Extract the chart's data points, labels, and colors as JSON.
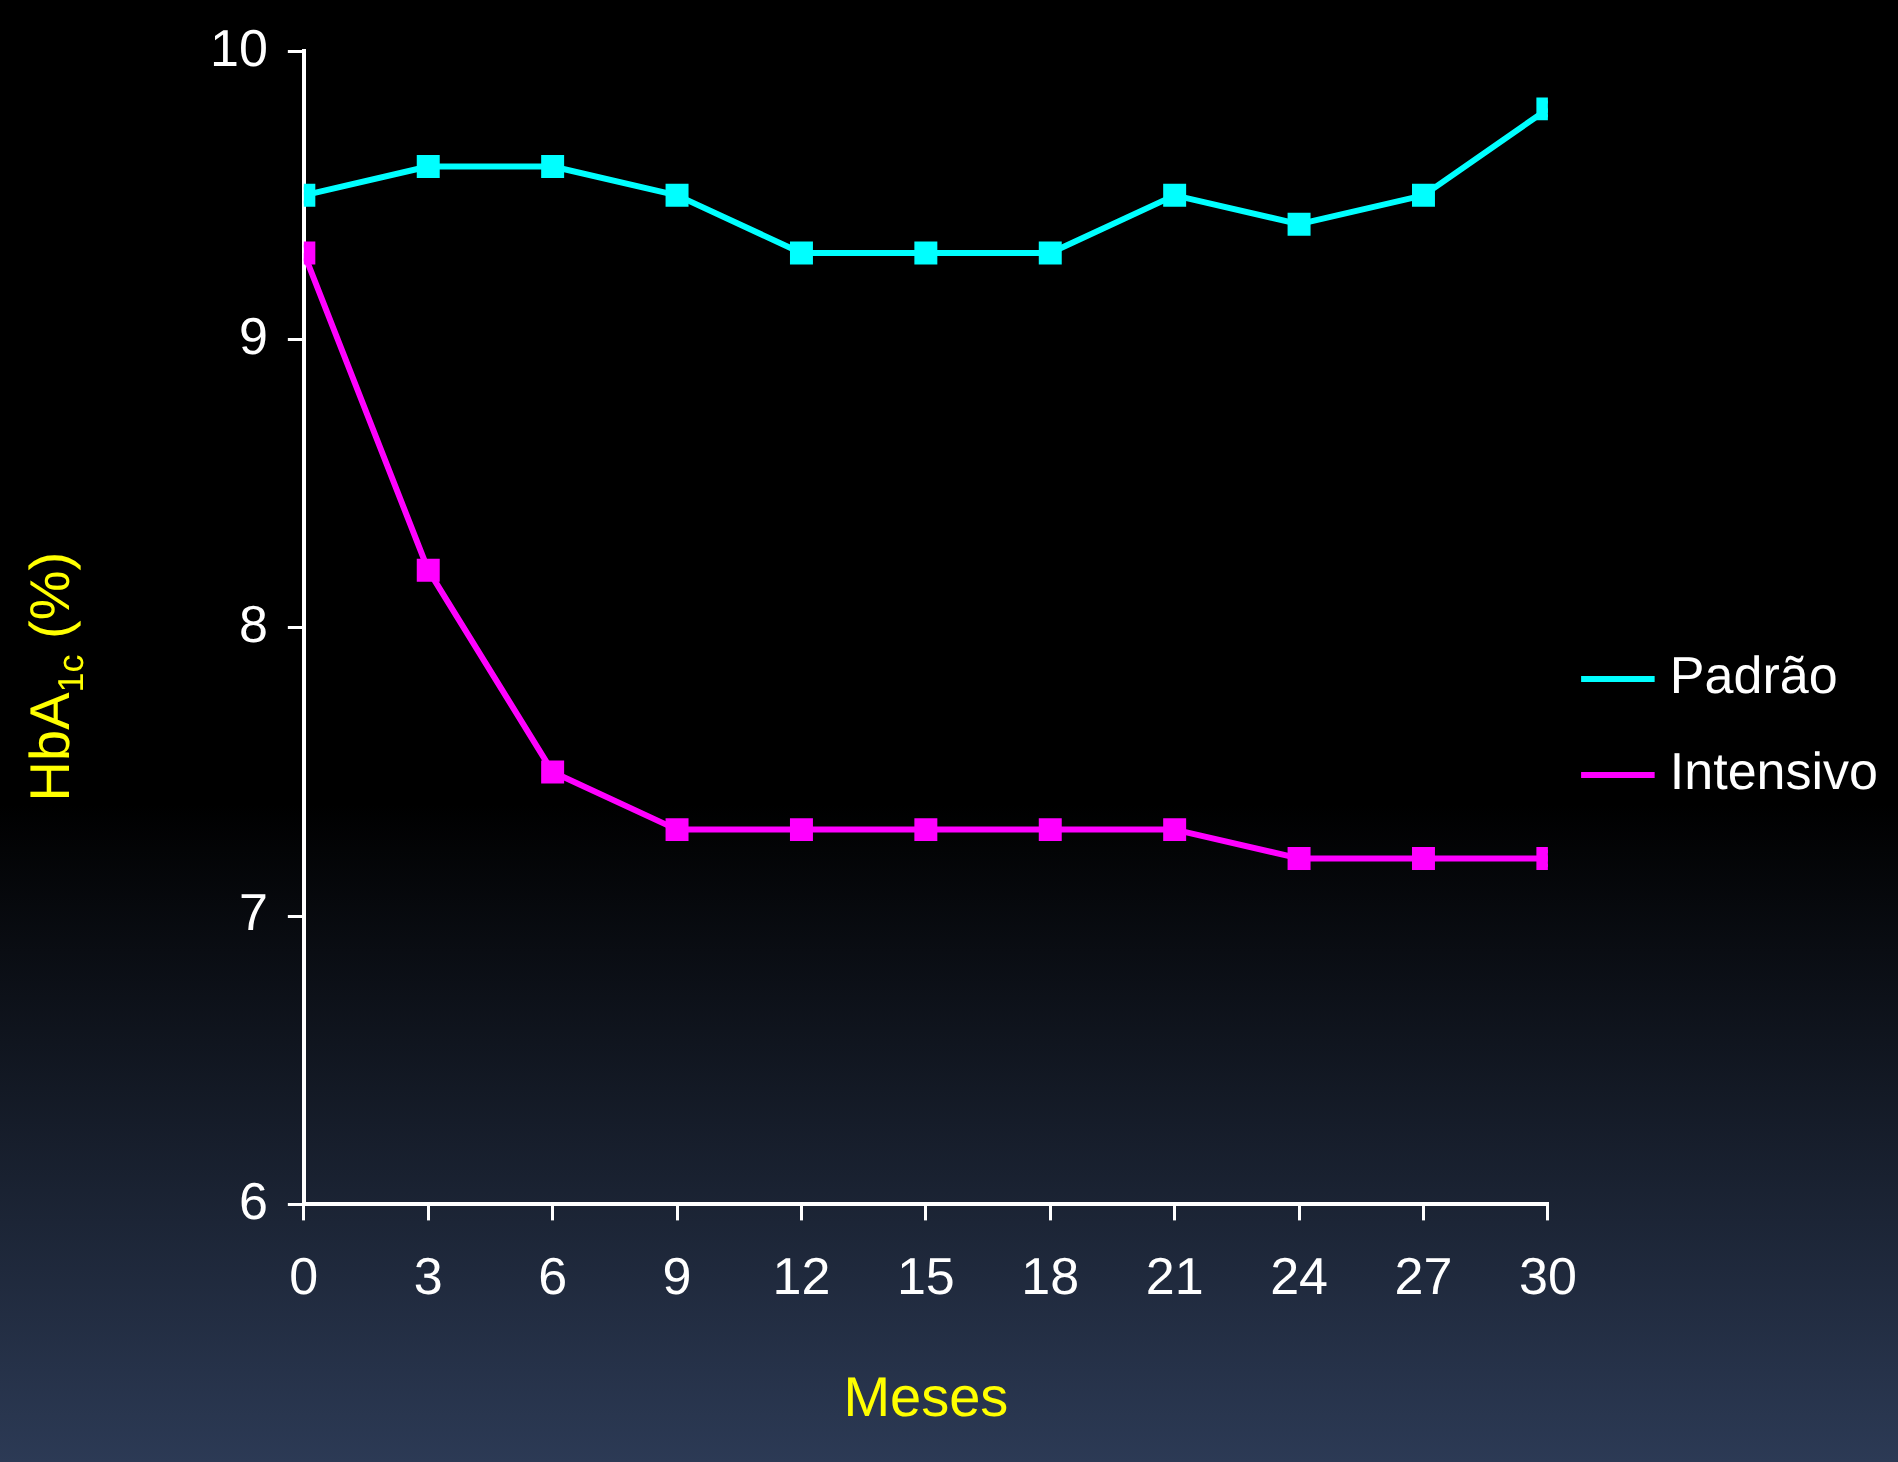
{
  "chart_data": {
    "type": "line",
    "xlabel": "Meses",
    "ylabel": "HbA$_{1c}$ (%)",
    "x": [
      0,
      3,
      6,
      9,
      12,
      15,
      18,
      21,
      24,
      27,
      30
    ],
    "series": [
      {
        "name": "Padrão",
        "color": "#00ffff",
        "values": [
          9.5,
          9.6,
          9.6,
          9.5,
          9.3,
          9.3,
          9.3,
          9.5,
          9.4,
          9.5,
          9.8
        ]
      },
      {
        "name": "Intensivo",
        "color": "#ff00ff",
        "values": [
          9.3,
          8.2,
          7.5,
          7.3,
          7.3,
          7.3,
          7.3,
          7.3,
          7.2,
          7.2,
          7.2
        ]
      }
    ],
    "xlim": [
      0,
      30
    ],
    "xticks": [
      0,
      3,
      6,
      9,
      12,
      15,
      18,
      21,
      24,
      27,
      30
    ],
    "ylim": [
      6,
      10
    ],
    "yticks": [
      6,
      7,
      8,
      9,
      10
    ],
    "grid": false,
    "legend": "right",
    "marker": "square",
    "line_style": "solid"
  }
}
